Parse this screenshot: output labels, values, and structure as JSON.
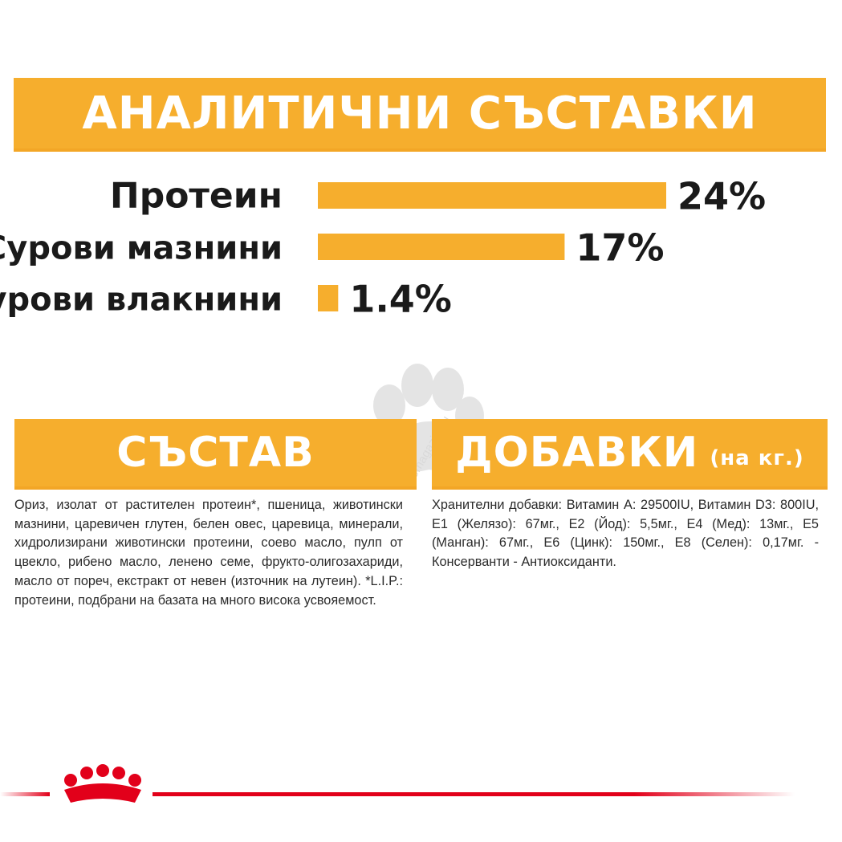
{
  "headings": {
    "analytical": "АНАЛИТИЧНИ СЪСТАВКИ",
    "composition": "СЪСТАВ",
    "additives": "ДОБАВКИ",
    "additives_unit": "(на кг.)"
  },
  "chart_data": {
    "type": "bar",
    "orientation": "horizontal",
    "categories": [
      "Протеин",
      "Сурови мазнини",
      "Сурови влакнини"
    ],
    "values": [
      24,
      17,
      1.4
    ],
    "value_labels": [
      "24%",
      "17%",
      "1.4%"
    ],
    "xlim": [
      0,
      24
    ],
    "grid": false,
    "legend": "none"
  },
  "composition_text": "Ориз, изолат от растителен протеин*, пшеница, животински мазнини, царевичен глутен, белен овес, царевица, минерали, хидролизирани животински протеини, соево масло, пулп от цвекло, рибено масло, ленено семе, фрукто-олигозахариди, масло от пореч, екстракт от невен (източник на лутеин). *L.I.P.: протеини, подбрани на базата на много висока усвояемост.",
  "additives_text": "Хранителни добавки: Витамин А: 29500IU, Витамин D3: 800IU, Е1 (Желязо): 67мг., Е2 (Йод): 5,5мг., Е4 (Мед): 13мг., Е5 (Манган): 67мг., Е6 (Цинк): 150мг., Е8 (Селен): 0,17мг. - Консерванти - Антиоксиданти.",
  "watermark_text": "zoomagazin.eu",
  "colors": {
    "accent": "#f6ae2d",
    "text": "#1a1a1a",
    "brand_red": "#e2001a"
  }
}
